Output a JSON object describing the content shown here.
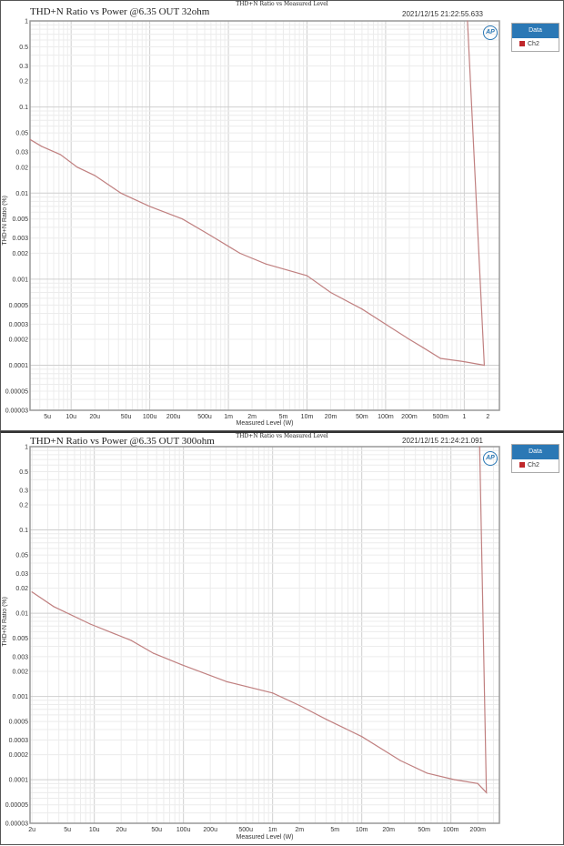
{
  "chart_data": [
    {
      "type": "line",
      "super_title": "THD+N Ratio vs Measured Level",
      "title": "THD+N Ratio vs Power @6.35 OUT 32ohm",
      "timestamp": "2021/12/15 21:22:55.633",
      "xlabel": "Measured Level (W)",
      "ylabel": "THD+N Ratio (%)",
      "x_scale": "log",
      "y_scale": "log",
      "xlim": [
        3e-06,
        2.8
      ],
      "ylim": [
        3e-05,
        1
      ],
      "grid": true,
      "legend": {
        "title": "Data",
        "position": "right",
        "entries": [
          "Ch2"
        ]
      },
      "x_ticks": [
        {
          "v": 5e-06,
          "label": "5u"
        },
        {
          "v": 1e-05,
          "label": "10u"
        },
        {
          "v": 2e-05,
          "label": "20u"
        },
        {
          "v": 5e-05,
          "label": "50u"
        },
        {
          "v": 0.0001,
          "label": "100u"
        },
        {
          "v": 0.0002,
          "label": "200u"
        },
        {
          "v": 0.0005,
          "label": "500u"
        },
        {
          "v": 0.001,
          "label": "1m"
        },
        {
          "v": 0.002,
          "label": "2m"
        },
        {
          "v": 0.005,
          "label": "5m"
        },
        {
          "v": 0.01,
          "label": "10m"
        },
        {
          "v": 0.02,
          "label": "20m"
        },
        {
          "v": 0.05,
          "label": "50m"
        },
        {
          "v": 0.1,
          "label": "100m"
        },
        {
          "v": 0.2,
          "label": "200m"
        },
        {
          "v": 0.5,
          "label": "500m"
        },
        {
          "v": 1,
          "label": "1"
        },
        {
          "v": 2,
          "label": "2"
        }
      ],
      "y_ticks": [
        {
          "v": 1,
          "label": "1"
        },
        {
          "v": 0.5,
          "label": "0.5"
        },
        {
          "v": 0.3,
          "label": "0.3"
        },
        {
          "v": 0.2,
          "label": "0.2"
        },
        {
          "v": 0.1,
          "label": "0.1"
        },
        {
          "v": 0.05,
          "label": "0.05"
        },
        {
          "v": 0.03,
          "label": "0.03"
        },
        {
          "v": 0.02,
          "label": "0.02"
        },
        {
          "v": 0.01,
          "label": "0.01"
        },
        {
          "v": 0.005,
          "label": "0.005"
        },
        {
          "v": 0.003,
          "label": "0.003"
        },
        {
          "v": 0.002,
          "label": "0.002"
        },
        {
          "v": 0.001,
          "label": "0.001"
        },
        {
          "v": 0.0005,
          "label": "0.0005"
        },
        {
          "v": 0.0003,
          "label": "0.0003"
        },
        {
          "v": 0.0002,
          "label": "0.0002"
        },
        {
          "v": 0.0001,
          "label": "0.0001"
        },
        {
          "v": 5e-05,
          "label": "0.00005"
        },
        {
          "v": 3e-05,
          "label": "0.00003"
        }
      ],
      "series": [
        {
          "name": "Ch2",
          "color": "#c08080",
          "x": [
            3e-06,
            4.2e-06,
            7.3e-06,
            1.2e-05,
            2e-05,
            4.3e-05,
            0.0001,
            0.00026,
            0.0006,
            0.0014,
            0.003,
            0.01,
            0.02,
            0.05,
            0.1,
            0.2,
            0.3,
            0.5,
            1,
            1.8,
            1.1
          ],
          "y": [
            0.042,
            0.035,
            0.028,
            0.02,
            0.016,
            0.01,
            0.007,
            0.005,
            0.0032,
            0.002,
            0.0015,
            0.0011,
            0.0007,
            0.00045,
            0.0003,
            0.0002,
            0.00016,
            0.00012,
            0.00011,
            0.0001,
            1
          ]
        }
      ]
    },
    {
      "type": "line",
      "super_title": "THD+N Ratio vs Measured Level",
      "title": "THD+N Ratio vs Power @6.35 OUT 300ohm",
      "timestamp": "2021/12/15 21:24:21.091",
      "xlabel": "Measured Level (W)",
      "ylabel": "THD+N Ratio (%)",
      "x_scale": "log",
      "y_scale": "log",
      "xlim": [
        1.9e-06,
        0.35
      ],
      "ylim": [
        3e-05,
        1
      ],
      "grid": true,
      "legend": {
        "title": "Data",
        "position": "right",
        "entries": [
          "Ch2"
        ]
      },
      "x_ticks": [
        {
          "v": 2e-06,
          "label": "2u"
        },
        {
          "v": 5e-06,
          "label": "5u"
        },
        {
          "v": 1e-05,
          "label": "10u"
        },
        {
          "v": 2e-05,
          "label": "20u"
        },
        {
          "v": 5e-05,
          "label": "50u"
        },
        {
          "v": 0.0001,
          "label": "100u"
        },
        {
          "v": 0.0002,
          "label": "200u"
        },
        {
          "v": 0.0005,
          "label": "500u"
        },
        {
          "v": 0.001,
          "label": "1m"
        },
        {
          "v": 0.002,
          "label": "2m"
        },
        {
          "v": 0.005,
          "label": "5m"
        },
        {
          "v": 0.01,
          "label": "10m"
        },
        {
          "v": 0.02,
          "label": "20m"
        },
        {
          "v": 0.05,
          "label": "50m"
        },
        {
          "v": 0.1,
          "label": "100m"
        },
        {
          "v": 0.2,
          "label": "200m"
        }
      ],
      "y_ticks": [
        {
          "v": 1,
          "label": "1"
        },
        {
          "v": 0.5,
          "label": "0.5"
        },
        {
          "v": 0.3,
          "label": "0.3"
        },
        {
          "v": 0.2,
          "label": "0.2"
        },
        {
          "v": 0.1,
          "label": "0.1"
        },
        {
          "v": 0.05,
          "label": "0.05"
        },
        {
          "v": 0.03,
          "label": "0.03"
        },
        {
          "v": 0.02,
          "label": "0.02"
        },
        {
          "v": 0.01,
          "label": "0.01"
        },
        {
          "v": 0.005,
          "label": "0.005"
        },
        {
          "v": 0.003,
          "label": "0.003"
        },
        {
          "v": 0.002,
          "label": "0.002"
        },
        {
          "v": 0.001,
          "label": "0.001"
        },
        {
          "v": 0.0005,
          "label": "0.0005"
        },
        {
          "v": 0.0003,
          "label": "0.0003"
        },
        {
          "v": 0.0002,
          "label": "0.0002"
        },
        {
          "v": 0.0001,
          "label": "0.0001"
        },
        {
          "v": 5e-05,
          "label": "0.00005"
        },
        {
          "v": 3e-05,
          "label": "0.00003"
        }
      ],
      "series": [
        {
          "name": "Ch2",
          "color": "#c08080",
          "x": [
            2e-06,
            3.5e-06,
            9e-06,
            2.6e-05,
            4.6e-05,
            9.6e-05,
            0.00031,
            0.001,
            0.002,
            0.004,
            0.01,
            0.027,
            0.054,
            0.11,
            0.2,
            0.25,
            0.21
          ],
          "y": [
            0.018,
            0.012,
            0.0074,
            0.0047,
            0.0033,
            0.0024,
            0.0015,
            0.0011,
            0.00078,
            0.00053,
            0.00033,
            0.00017,
            0.00012,
            0.0001,
            9e-05,
            7e-05,
            1
          ]
        }
      ]
    }
  ]
}
